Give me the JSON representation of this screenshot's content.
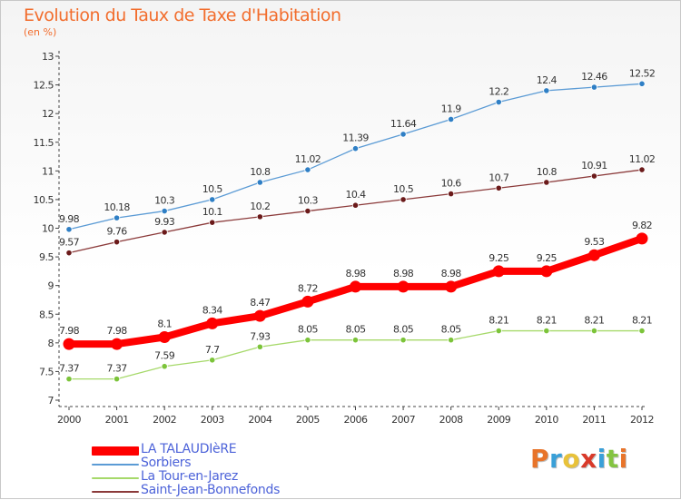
{
  "title": "Evolution du Taux de Taxe d'Habitation",
  "unit_label": "(en %)",
  "logo": {
    "text": "Proxiti",
    "letter_colors": [
      "#e8742a",
      "#3aa0d8",
      "#e8c23a",
      "#d93a2a",
      "#3aa0d8",
      "#84c441",
      "#e8742a"
    ]
  },
  "chart_data": {
    "type": "line",
    "title": "Evolution du Taux de Taxe d'Habitation",
    "xlabel": "",
    "ylabel": "(en %)",
    "x": [
      "2000",
      "2001",
      "2002",
      "2003",
      "2004",
      "2005",
      "2006",
      "2007",
      "2008",
      "2009",
      "2010",
      "2011",
      "2012"
    ],
    "ylim": [
      7,
      13
    ],
    "yticks": [
      "7",
      "7.5",
      "8",
      "8.5",
      "9",
      "9.5",
      "10",
      "10.5",
      "11",
      "11.5",
      "12",
      "12.5",
      "13"
    ],
    "grid": false,
    "legend_position": "bottom-left",
    "series": [
      {
        "name": "LA TALAUDIèRE",
        "color": "#ff0000",
        "highlight": true,
        "values": [
          7.98,
          7.98,
          8.1,
          8.34,
          8.47,
          8.72,
          8.98,
          8.98,
          8.98,
          9.25,
          9.25,
          9.53,
          9.82
        ],
        "labels": [
          "7.98",
          "7.98",
          "8.1",
          "8.34",
          "8.47",
          "8.72",
          "8.98",
          "8.98",
          "8.98",
          "9.25",
          "9.25",
          "9.53",
          "9.82"
        ]
      },
      {
        "name": "Sorbiers",
        "color": "#5b9bd5",
        "marker_color": "#2f7fc5",
        "values": [
          9.98,
          10.18,
          10.3,
          10.5,
          10.8,
          11.02,
          11.39,
          11.64,
          11.9,
          12.2,
          12.4,
          12.46,
          12.52
        ],
        "labels": [
          "9.98",
          "10.18",
          "10.3",
          "10.5",
          "10.8",
          "11.02",
          "11.39",
          "11.64",
          "11.9",
          "12.2",
          "12.4",
          "12.46",
          "12.52"
        ]
      },
      {
        "name": "La Tour-en-Jarez",
        "color": "#a6d96a",
        "marker_color": "#7cc43a",
        "values": [
          7.37,
          7.37,
          7.59,
          7.7,
          7.93,
          8.05,
          8.05,
          8.05,
          8.05,
          8.21,
          8.21,
          8.21,
          8.21
        ],
        "labels": [
          "7.37",
          "7.37",
          "7.59",
          "7.7",
          "7.93",
          "8.05",
          "8.05",
          "8.05",
          "8.05",
          "8.21",
          "8.21",
          "8.21",
          "8.21"
        ]
      },
      {
        "name": "Saint-Jean-Bonnefonds",
        "color": "#8b3a3a",
        "marker_color": "#6b1a1a",
        "values": [
          9.57,
          9.76,
          9.93,
          10.1,
          10.2,
          10.3,
          10.4,
          10.5,
          10.6,
          10.7,
          10.8,
          10.91,
          11.02
        ],
        "labels": [
          "9.57",
          "9.76",
          "9.93",
          "10.1",
          "10.2",
          "10.3",
          "10.4",
          "10.5",
          "10.6",
          "10.7",
          "10.8",
          "10.91",
          "11.02"
        ]
      }
    ]
  }
}
